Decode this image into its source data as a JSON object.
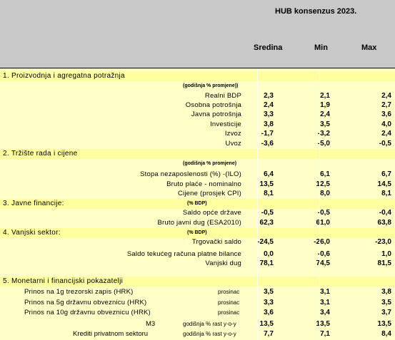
{
  "header": {
    "title": "HUB konsenzus 2023.",
    "col_median": "Sredina",
    "col_min": "Min",
    "col_max": "Max"
  },
  "sections": [
    {
      "title": "1. Proizvodnja i agregatna potražnja",
      "note": "(godišnja % promjene))",
      "rows": [
        {
          "label": "Realni BDP",
          "median": "2,3",
          "min": "2,1",
          "max": "2,4"
        },
        {
          "label": "Osobna potrošnja",
          "median": "2,4",
          "min": "1,9",
          "max": "2,7"
        },
        {
          "label": "Javna potrošnja",
          "median": "3,3",
          "min": "2,4",
          "max": "3,6"
        },
        {
          "label": "Investicije",
          "median": "3,8",
          "min": "3,5",
          "max": "4,0"
        },
        {
          "label": "Izvoz",
          "median": "-1,7",
          "min": "-3,2",
          "max": "2,4"
        },
        {
          "label": "Uvoz",
          "median": "-3,6",
          "min": "-5,0",
          "max": "-0,5"
        }
      ]
    },
    {
      "title": "2. Tržište rada i cijene",
      "note": "(godišnja % promjene)",
      "rows": [
        {
          "label": "Stopa nezaposlenosti (%) -(ILO)",
          "median": "6,4",
          "min": "6,1",
          "max": "6,7"
        },
        {
          "label": "Bruto plaće - nominalno",
          "median": "13,5",
          "min": "12,5",
          "max": "14,5"
        },
        {
          "label": "Cijene (prosjek CPI)",
          "median": "8,1",
          "min": "8,0",
          "max": "8,1"
        }
      ]
    },
    {
      "title": "3. Javne financije:",
      "note": "(% BDP)",
      "rows": [
        {
          "label": "Saldo opće države",
          "median": "-0,5",
          "min": "-0,5",
          "max": "-0,4"
        },
        {
          "label": "Bruto javni dug (ESA2010)",
          "median": "62,3",
          "min": "61,0",
          "max": "63,8"
        }
      ]
    },
    {
      "title": "4. Vanjski sektor:",
      "note": "(% BDP)",
      "rows": [
        {
          "label": "Trgovački saldo",
          "median": "-24,5",
          "min": "-26,0",
          "max": "-23,0"
        },
        {
          "label": "Saldo tekućeg računa platne bilance",
          "median": "0,0",
          "min": "-0,6",
          "max": "1,0"
        },
        {
          "label": "Vanjski dug",
          "median": "78,1",
          "min": "74,5",
          "max": "81,5"
        }
      ]
    },
    {
      "title": "5. Monetarni i financijski pokazatelji",
      "note": "",
      "rows": [
        {
          "label": "Prinos na 1g trezorski zapis (HRK)",
          "period": "prosinac",
          "median": "3,5",
          "min": "3,1",
          "max": "3,8"
        },
        {
          "label": "Prinos na 5g državnu obveznicu (HRK)",
          "period": "prosinac",
          "median": "3,3",
          "min": "3,1",
          "max": "3,5"
        },
        {
          "label": "Prinos na 10g državnu obveznicu (HRK)",
          "period": "prosinac",
          "median": "3,6",
          "min": "3,4",
          "max": "3,7"
        },
        {
          "label": "M3",
          "period": "godišnja % rast y-o-y",
          "median": "13,5",
          "min": "13,5",
          "max": "13,5"
        },
        {
          "label": "Krediti privatnom sektoru",
          "period": "godišnja % rast y-o-y",
          "median": "7,7",
          "min": "7,1",
          "max": "8,4"
        }
      ]
    }
  ]
}
